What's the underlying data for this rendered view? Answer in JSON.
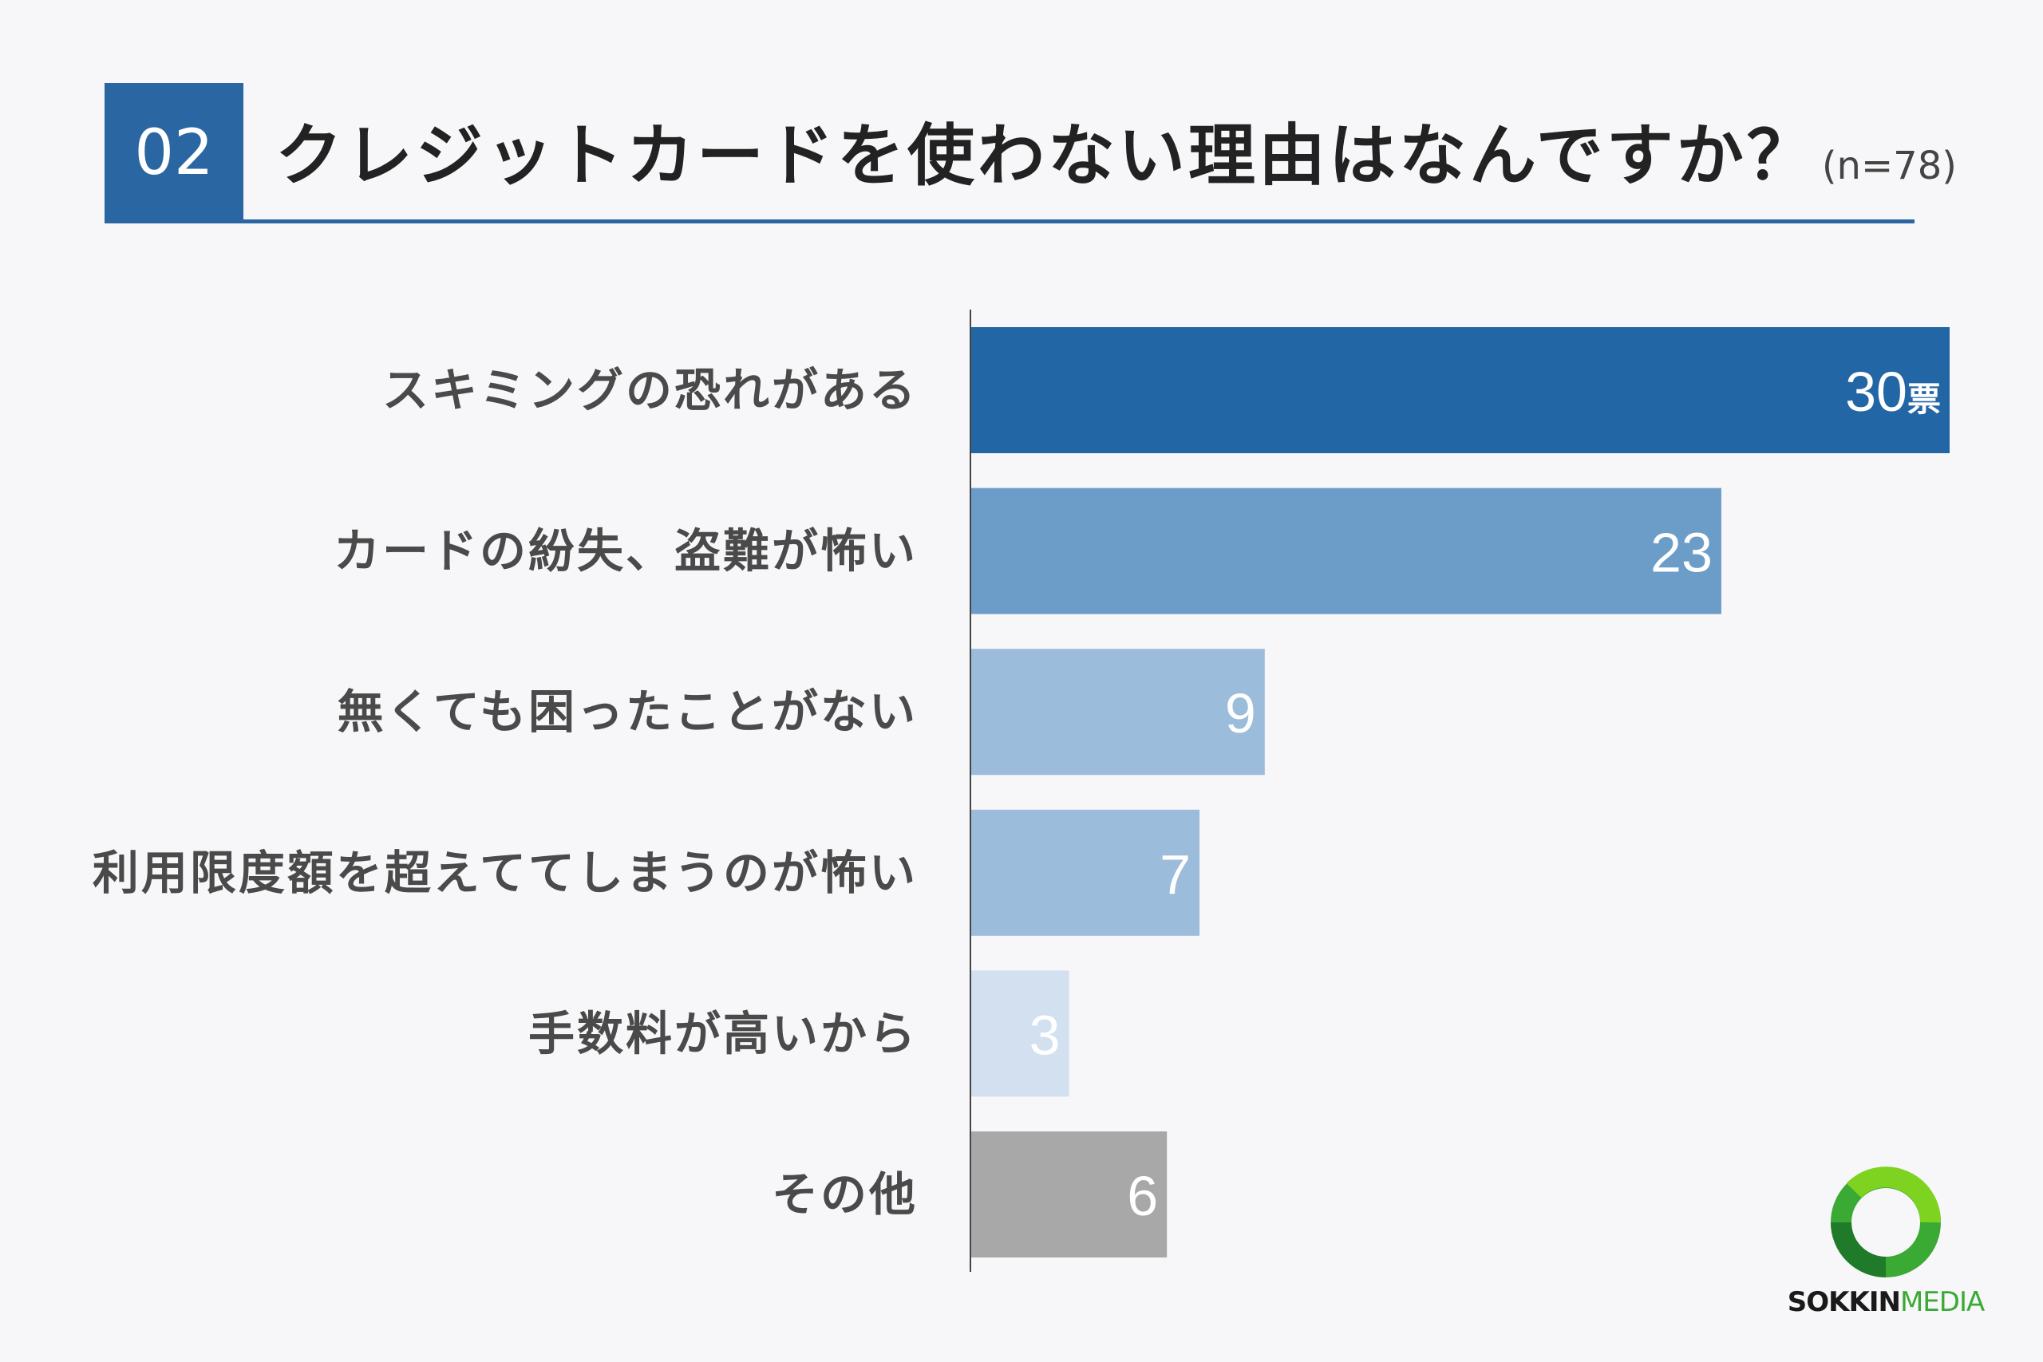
{
  "header": {
    "number": "02",
    "title": "クレジットカードを使わない理由はなんですか？",
    "sample": "(n=78)"
  },
  "chart_data": {
    "type": "bar",
    "orientation": "horizontal",
    "categories": [
      "スキミングの恐れがある",
      "カードの紛失、盗難が怖い",
      "無くても困ったことがない",
      "利用限度額を超えててしまうのが怖い",
      "手数料が高いから",
      "その他"
    ],
    "values": [
      30,
      23,
      9,
      7,
      3,
      6
    ],
    "value_labels": [
      "30",
      "23",
      "9",
      "7",
      "3",
      "6"
    ],
    "unit": "票",
    "colors": [
      "#2366a5",
      "#6b9dc8",
      "#9bbcda",
      "#9bbcda",
      "#d3e0f0",
      "#a8a8a8"
    ],
    "xlim": [
      0,
      30
    ],
    "grid": false
  },
  "logo": {
    "brand": "SOKKIN",
    "suffix": "MEDIA",
    "accent": "#3aaa35"
  }
}
